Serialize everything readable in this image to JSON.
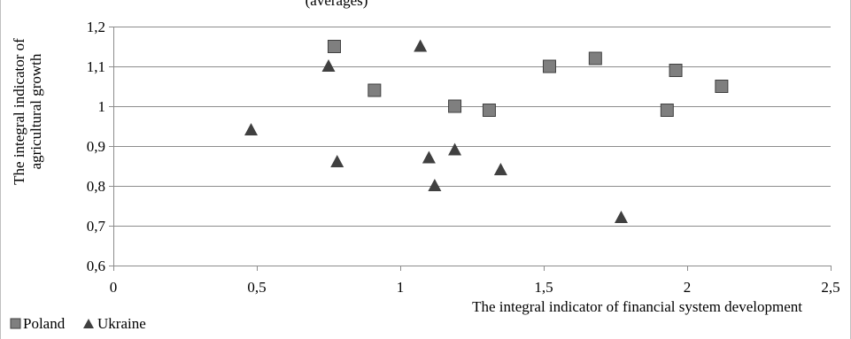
{
  "header_fragment": "(averages)",
  "chart_data": {
    "type": "scatter",
    "title": "",
    "xlabel": "The integral indicator of financial system development",
    "ylabel": "The integral indicator of agricultural growth",
    "xlim": [
      0,
      2.5
    ],
    "ylim": [
      0.6,
      1.2
    ],
    "x_ticks": [
      "0",
      "0,5",
      "1",
      "1,5",
      "2",
      "2,5"
    ],
    "y_ticks": [
      "0,6",
      "0,7",
      "0,8",
      "0,9",
      "1",
      "1,1",
      "1,2"
    ],
    "grid": "horizontal",
    "legend_position": "bottom-left",
    "series": [
      {
        "name": "Poland",
        "marker": "square",
        "color": "#7f7f7f",
        "points": [
          {
            "x": 0.77,
            "y": 1.15
          },
          {
            "x": 0.91,
            "y": 1.04
          },
          {
            "x": 1.19,
            "y": 1.0
          },
          {
            "x": 1.31,
            "y": 0.99
          },
          {
            "x": 1.52,
            "y": 1.1
          },
          {
            "x": 1.68,
            "y": 1.12
          },
          {
            "x": 1.93,
            "y": 0.99
          },
          {
            "x": 1.96,
            "y": 1.09
          },
          {
            "x": 2.12,
            "y": 1.05
          }
        ]
      },
      {
        "name": "Ukraine",
        "marker": "triangle",
        "color": "#404040",
        "points": [
          {
            "x": 0.48,
            "y": 0.94
          },
          {
            "x": 0.75,
            "y": 1.1
          },
          {
            "x": 0.78,
            "y": 0.86
          },
          {
            "x": 1.07,
            "y": 1.15
          },
          {
            "x": 1.1,
            "y": 0.87
          },
          {
            "x": 1.12,
            "y": 0.8
          },
          {
            "x": 1.19,
            "y": 0.89
          },
          {
            "x": 1.35,
            "y": 0.84
          },
          {
            "x": 1.77,
            "y": 0.72
          }
        ]
      }
    ]
  }
}
